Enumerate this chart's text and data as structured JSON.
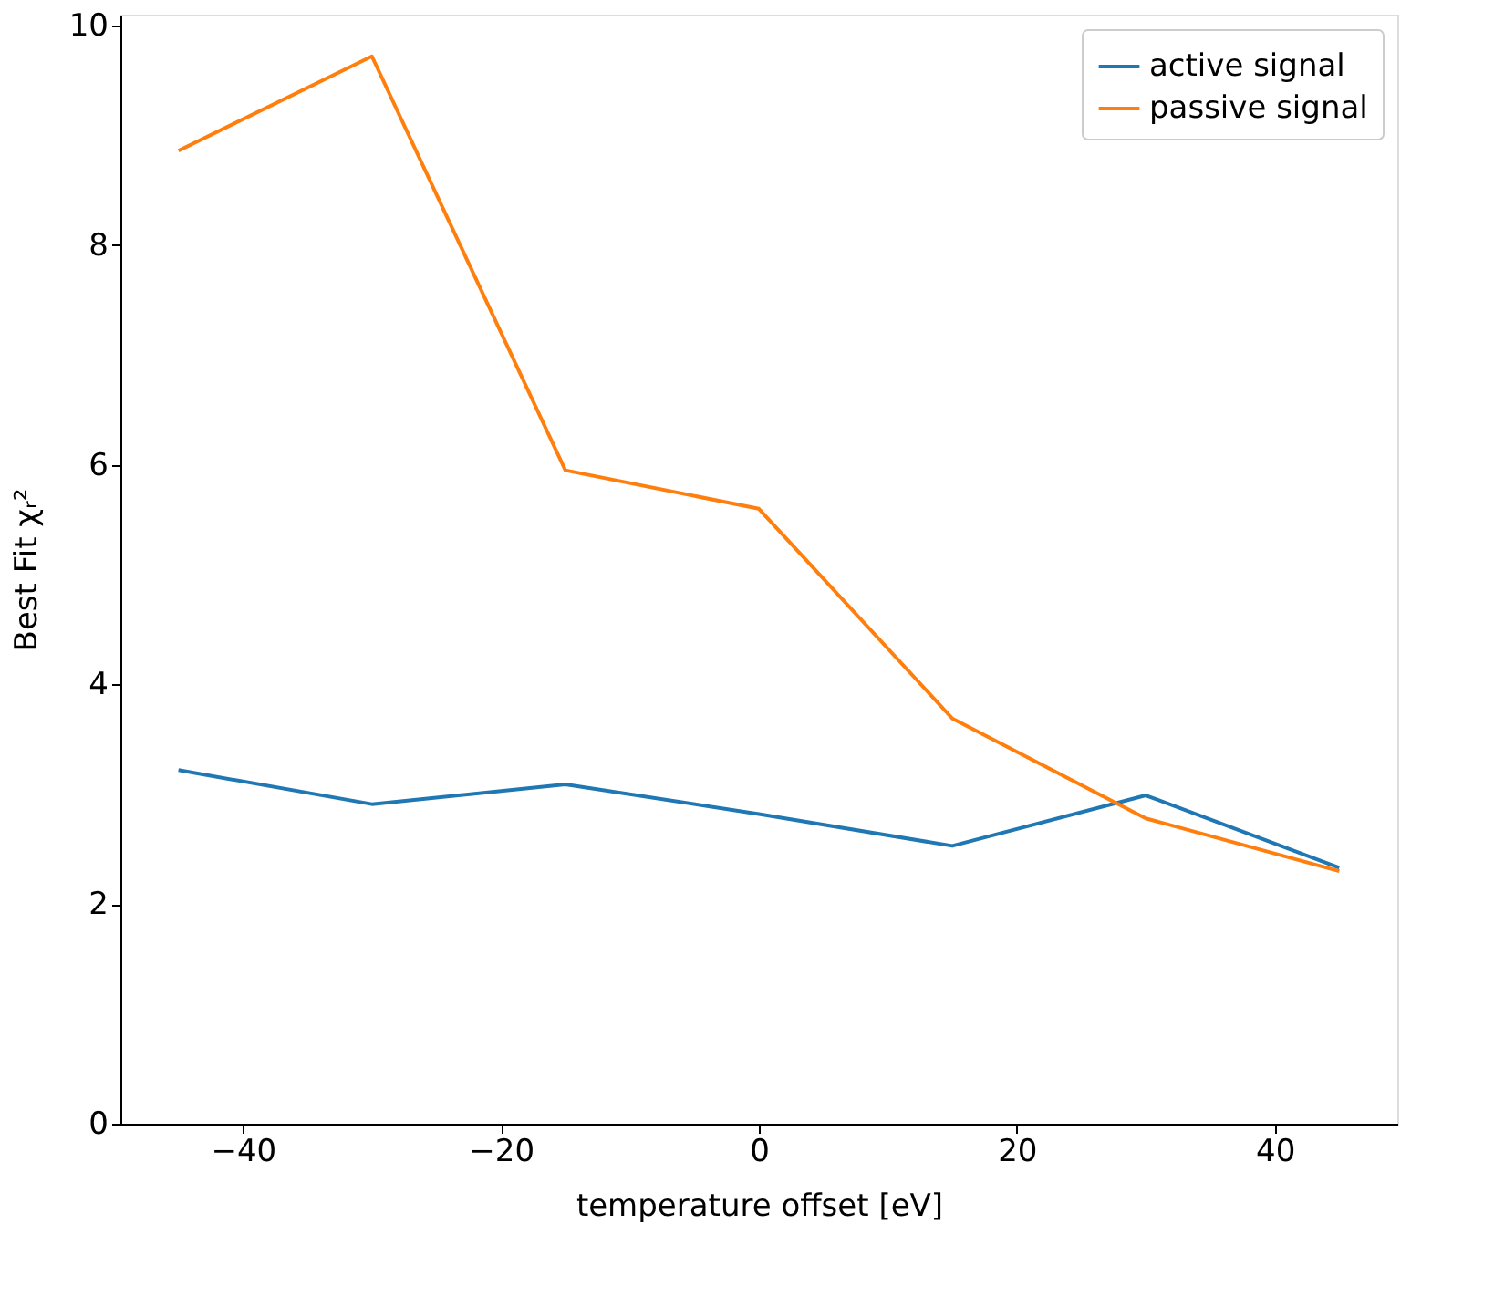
{
  "chart_data": {
    "type": "line",
    "x": [
      -45,
      -30,
      -15,
      0,
      15,
      30,
      45
    ],
    "series": [
      {
        "name": "active signal",
        "color": "#1f77b4",
        "values": [
          3.22,
          2.91,
          3.09,
          2.82,
          2.53,
          2.99,
          2.33
        ]
      },
      {
        "name": "passive signal",
        "color": "#ff7f0e",
        "values": [
          8.86,
          9.72,
          5.95,
          5.6,
          3.69,
          2.78,
          2.3
        ]
      }
    ],
    "xlabel": "temperature offset [eV]",
    "ylabel": "Best Fit χᵣ²",
    "xlim": [
      -49.5,
      49.5
    ],
    "xticks": [
      -40,
      -20,
      0,
      20,
      40
    ],
    "ylim": [
      0,
      10.1
    ],
    "yticks": [
      0,
      2,
      4,
      6,
      8,
      10
    ],
    "grid": false,
    "legend": "top right",
    "marker": "none",
    "line_style": "solid"
  }
}
